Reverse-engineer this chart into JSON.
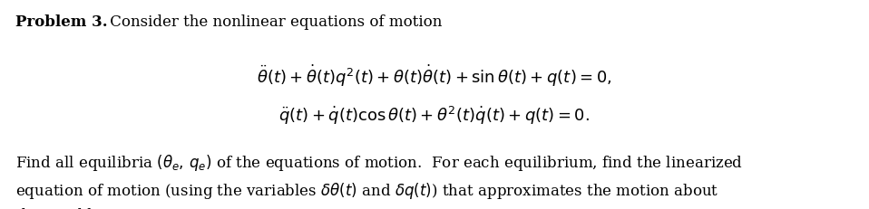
{
  "background_color": "#ffffff",
  "fig_width": 9.58,
  "fig_height": 2.32,
  "dpi": 100,
  "font_size_title": 12,
  "font_size_eq": 13,
  "font_size_body": 12,
  "text_color": "#000000",
  "title_bold": "Problem 3.",
  "title_normal": " Consider the nonlinear equations of motion",
  "body_line3": "the equilibrium."
}
